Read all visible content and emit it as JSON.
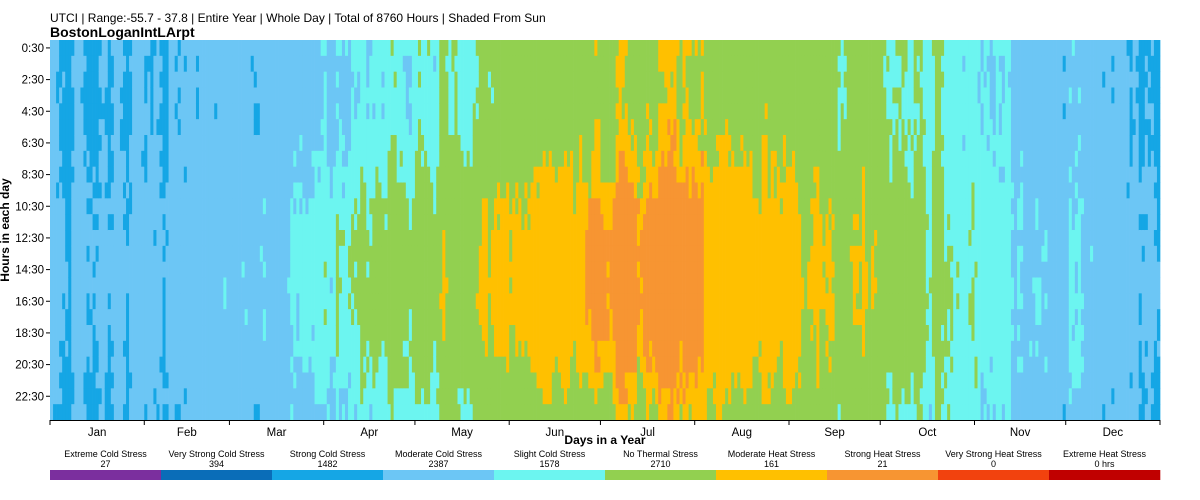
{
  "chart_data": {
    "type": "heatmap",
    "subtitle": "UTCI | Range:-55.7 - 37.8 | Entire Year | Whole Day | Total of 8760 Hours | Shaded From Sun",
    "title": "BostonLoganIntLArpt",
    "xlabel": "Days in a Year",
    "ylabel": "Hours in each day",
    "x_ticks": [
      "Jan",
      "Feb",
      "Mar",
      "Apr",
      "May",
      "Jun",
      "Jul",
      "Aug",
      "Sep",
      "Oct",
      "Nov",
      "Dec"
    ],
    "y_ticks": [
      "0:30",
      "2:30",
      "4:30",
      "6:30",
      "8:30",
      "10:30",
      "12:30",
      "14:30",
      "16:30",
      "18:30",
      "20:30",
      "22:30"
    ],
    "days": 365,
    "hours": 24,
    "range": [
      -55.7,
      37.8
    ],
    "categories": [
      {
        "name": "Extreme Cold Stress",
        "count": "27",
        "color": "#7B2F9E"
      },
      {
        "name": "Very Strong Cold Stress",
        "count": "394",
        "color": "#0A6DB8"
      },
      {
        "name": "Strong Cold Stress",
        "count": "1482",
        "color": "#15A6E5"
      },
      {
        "name": "Moderate Cold Stress",
        "count": "2387",
        "color": "#6CC6F5"
      },
      {
        "name": "Slight Cold Stress",
        "count": "1578",
        "color": "#6CF5F0"
      },
      {
        "name": "No Thermal Stress",
        "count": "2710",
        "color": "#92D050"
      },
      {
        "name": "Moderate Heat Stress",
        "count": "161",
        "color": "#FFC000"
      },
      {
        "name": "Strong Heat Stress",
        "count": "21",
        "color": "#F79532"
      },
      {
        "name": "Very Strong Heat Stress",
        "count": "0",
        "color": "#F2420E"
      },
      {
        "name": "Extreme Heat Stress",
        "count": "0 hrs",
        "color": "#C00000"
      }
    ]
  }
}
